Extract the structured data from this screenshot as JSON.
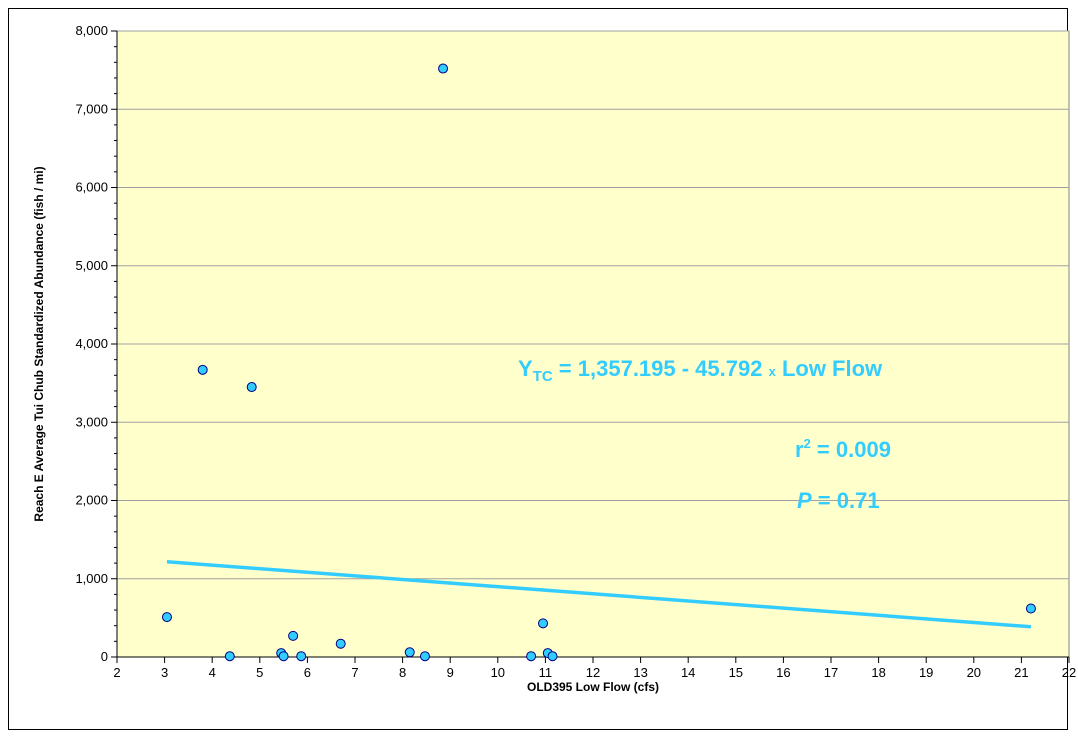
{
  "chart_data": {
    "type": "scatter",
    "title": "",
    "xlabel": "OLD395 Low Flow  (cfs)",
    "ylabel": "Reach E Average Tui Chub Standardized Abundance (fish / mi)",
    "xlim": [
      2,
      22
    ],
    "ylim": [
      0,
      8000
    ],
    "x_ticks": [
      2,
      3,
      4,
      5,
      6,
      7,
      8,
      9,
      10,
      11,
      12,
      13,
      14,
      15,
      16,
      17,
      18,
      19,
      20,
      21,
      22
    ],
    "y_ticks": [
      0,
      1000,
      2000,
      3000,
      4000,
      5000,
      6000,
      7000,
      8000
    ],
    "y_tick_labels": [
      "0",
      "1,000",
      "2,000",
      "3,000",
      "4,000",
      "5,000",
      "6,000",
      "7,000",
      "8,000"
    ],
    "grid": "horizontal",
    "legend": "none",
    "points": [
      {
        "x": 3.05,
        "y": 510
      },
      {
        "x": 3.8,
        "y": 3670
      },
      {
        "x": 4.37,
        "y": 10
      },
      {
        "x": 4.83,
        "y": 3450
      },
      {
        "x": 5.45,
        "y": 50
      },
      {
        "x": 5.5,
        "y": 10
      },
      {
        "x": 5.7,
        "y": 270
      },
      {
        "x": 5.87,
        "y": 10
      },
      {
        "x": 6.7,
        "y": 170
      },
      {
        "x": 8.15,
        "y": 60
      },
      {
        "x": 8.47,
        "y": 10
      },
      {
        "x": 8.85,
        "y": 7520
      },
      {
        "x": 10.7,
        "y": 10
      },
      {
        "x": 10.95,
        "y": 430
      },
      {
        "x": 11.05,
        "y": 50
      },
      {
        "x": 11.15,
        "y": 10
      },
      {
        "x": 21.2,
        "y": 620
      }
    ],
    "trendline": {
      "intercept": 1357.195,
      "slope": -45.792,
      "x_range": [
        3.05,
        21.2
      ]
    },
    "annotations": {
      "equation_prefix": "Y",
      "equation_subscript": "TC",
      "equation_main": " = 1,357.195 - 45.792 ",
      "equation_times": "x",
      "equation_suffix": " Low Flow",
      "r2_label": "r",
      "r2_exponent": "2",
      "r2_value": " = 0.009",
      "p_label": "P",
      "p_value": " = 0.71"
    },
    "colors": {
      "plot_background": "#ffffcc",
      "gridline": "#a0a0a0",
      "point_fill": "#33ccff",
      "point_stroke": "#000080",
      "trendline": "#33ccff",
      "annotation": "#33ccff"
    }
  }
}
